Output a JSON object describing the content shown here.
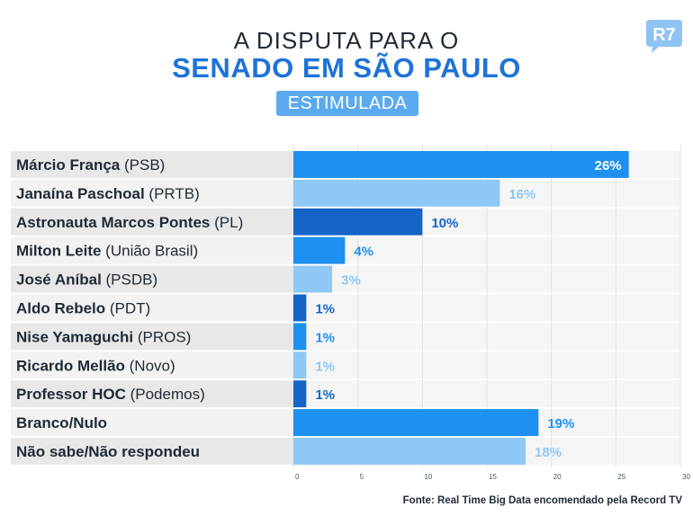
{
  "header": {
    "title_line1": "A DISPUTA PARA O",
    "title_line2": "SENADO EM SÃO PAULO",
    "subtitle": "ESTIMULADA",
    "logo_text": "R7"
  },
  "footer": {
    "source": "Fonte: Real Time Big Data encomendado pela Record TV"
  },
  "colors": {
    "title_dark": "#1f2a36",
    "title_blue": "#1e73d8",
    "badge": "#5ba9ee",
    "bar_medium": "#1e90f0",
    "bar_light": "#8ec8f6",
    "bar_dark": "#1565c8",
    "row_shade": "#e8e8e8",
    "row_light": "#f2f2f2"
  },
  "chart_data": {
    "type": "bar",
    "orientation": "horizontal",
    "title": "A DISPUTA PARA O SENADO EM SÃO PAULO",
    "subtitle": "ESTIMULADA",
    "xlim": [
      0,
      30
    ],
    "xticks": [
      "0",
      "5",
      "10",
      "15",
      "20",
      "25",
      "30"
    ],
    "grid": true,
    "unit": "%",
    "items": [
      {
        "name": "Márcio França",
        "party": " (PSB)",
        "value": 26,
        "label": "26%",
        "color": "medium",
        "label_inside": true
      },
      {
        "name": "Janaína Paschoal",
        "party": " (PRTB)",
        "value": 16,
        "label": "16%",
        "color": "light",
        "label_inside": false
      },
      {
        "name": "Astronauta Marcos Pontes",
        "party": " (PL)",
        "value": 10,
        "label": "10%",
        "color": "dark",
        "label_inside": false
      },
      {
        "name": "Milton Leite",
        "party": " (União Brasil)",
        "value": 4,
        "label": "4%",
        "color": "medium",
        "label_inside": false
      },
      {
        "name": "José Aníbal",
        "party": " (PSDB)",
        "value": 3,
        "label": "3%",
        "color": "light",
        "label_inside": false
      },
      {
        "name": "Aldo Rebelo",
        "party": " (PDT)",
        "value": 1,
        "label": "1%",
        "color": "dark",
        "label_inside": false
      },
      {
        "name": "Nise Yamaguchi",
        "party": " (PROS)",
        "value": 1,
        "label": "1%",
        "color": "medium",
        "label_inside": false
      },
      {
        "name": "Ricardo Mellão",
        "party": " (Novo)",
        "value": 1,
        "label": "1%",
        "color": "light",
        "label_inside": false
      },
      {
        "name": "Professor HOC",
        "party": " (Podemos)",
        "value": 1,
        "label": "1%",
        "color": "dark",
        "label_inside": false
      },
      {
        "name": "Branco/Nulo",
        "party": "",
        "value": 19,
        "label": "19%",
        "color": "medium",
        "label_inside": false
      },
      {
        "name": "Não sabe/Não respondeu",
        "party": "",
        "value": 18,
        "label": "18%",
        "color": "light",
        "label_inside": false
      }
    ]
  }
}
